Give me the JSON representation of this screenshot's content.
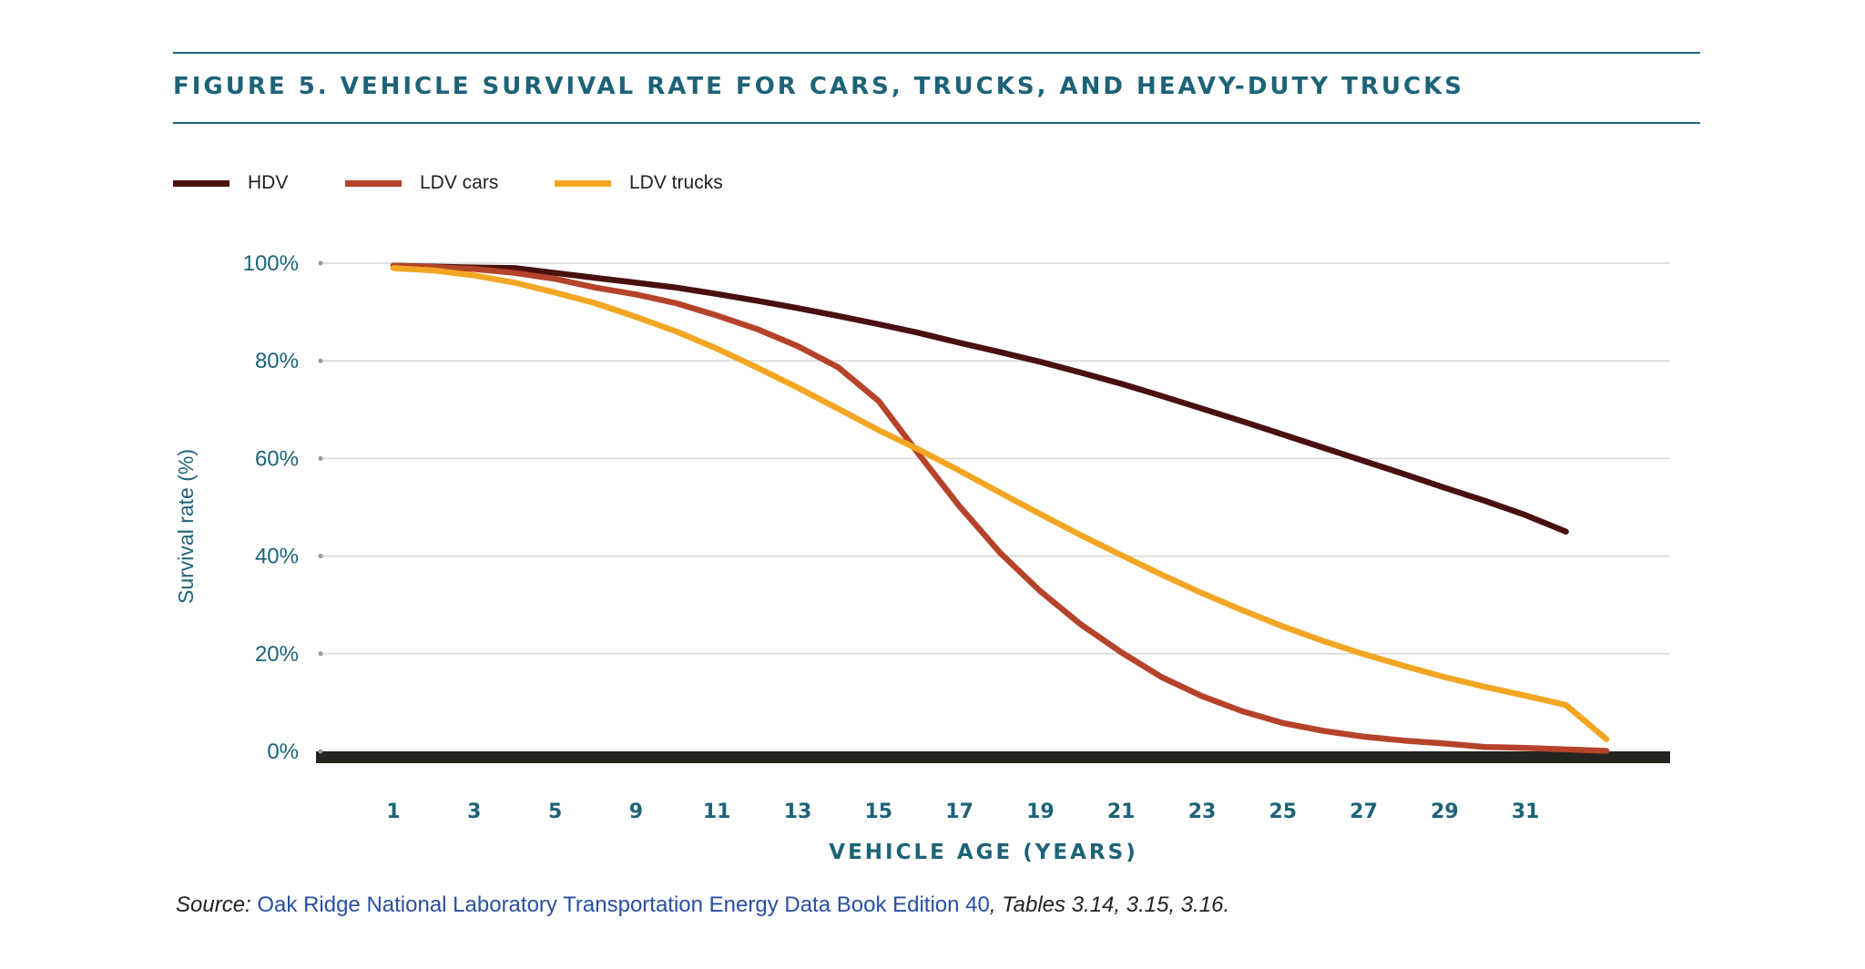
{
  "title": "FIGURE 5. VEHICLE SURVIVAL RATE FOR CARS, TRUCKS, AND HEAVY-DUTY TRUCKS",
  "source": {
    "prefix": "Source:",
    "link_text": "Oak Ridge National Laboratory Transportation Energy Data Book Edition 40",
    "suffix": ", Tables 3.14, 3.15, 3.16."
  },
  "colors": {
    "title": "#1d6378",
    "axis_text": "#1d6378",
    "baseline": "#22261f",
    "grid": "#d6d6d6",
    "link": "#2a4fa0"
  },
  "chart_data": {
    "type": "line",
    "title": "FIGURE 5. VEHICLE SURVIVAL RATE FOR CARS, TRUCKS, AND HEAVY-DUTY TRUCKS",
    "xlabel": "VEHICLE AGE (YEARS)",
    "ylabel": "Survival rate (%)",
    "x_tick_labels": [
      "1",
      "3",
      "5",
      "9",
      "11",
      "13",
      "15",
      "17",
      "19",
      "21",
      "23",
      "25",
      "27",
      "29",
      "31",
      " "
    ],
    "y_ticks": [
      0,
      20,
      40,
      60,
      80,
      100
    ],
    "y_tick_labels": [
      "0%",
      "20%",
      "40%",
      "60%",
      "80%",
      "100%"
    ],
    "ylim": [
      0,
      100
    ],
    "grid": true,
    "legend": "top-left",
    "series": [
      {
        "name": "HDV",
        "color": "#4a1010",
        "x": [
          1,
          2,
          3,
          4,
          5,
          6,
          7,
          8,
          9,
          10,
          11,
          12,
          13,
          14,
          15,
          16,
          17,
          18,
          19,
          20,
          21,
          22,
          23,
          24,
          25,
          26,
          27,
          28,
          29,
          30
        ],
        "values": [
          99.5,
          99.3,
          99.1,
          99,
          98,
          97,
          96,
          95,
          93.7,
          92.3,
          90.8,
          89.2,
          87.5,
          85.7,
          83.7,
          81.8,
          79.8,
          77.6,
          75.3,
          72.8,
          70.2,
          67.6,
          64.9,
          62.2,
          59.5,
          56.8,
          54,
          51.3,
          48.4,
          45
        ]
      },
      {
        "name": "LDV cars",
        "color": "#b5432a",
        "x": [
          1,
          2,
          3,
          4,
          5,
          6,
          7,
          8,
          9,
          10,
          11,
          12,
          13,
          14,
          15,
          16,
          17,
          18,
          19,
          20,
          21,
          22,
          23,
          24,
          25,
          26,
          27,
          28,
          29,
          30,
          31
        ],
        "values": [
          99.5,
          99.2,
          98.8,
          98,
          96.8,
          95,
          93.6,
          91.8,
          89.3,
          86.5,
          83,
          78.7,
          71.8,
          60.8,
          50.2,
          40.7,
          32.8,
          26,
          20.3,
          15.2,
          11.3,
          8.2,
          5.8,
          4.2,
          3,
          2.2,
          1.6,
          0.9,
          0.7,
          0.4,
          0.1
        ]
      },
      {
        "name": "LDV trucks",
        "color": "#f2a623",
        "x": [
          1,
          2,
          3,
          4,
          5,
          6,
          7,
          8,
          9,
          10,
          11,
          12,
          13,
          14,
          15,
          16,
          17,
          18,
          19,
          20,
          21,
          22,
          23,
          24,
          25,
          26,
          27,
          28,
          29,
          30,
          31
        ],
        "values": [
          99,
          98.5,
          97.5,
          96,
          94,
          91.8,
          89,
          86,
          82.5,
          78.6,
          74.5,
          70.2,
          65.8,
          61.8,
          57.5,
          53,
          48.6,
          44.3,
          40.2,
          36.2,
          32.4,
          28.9,
          25.6,
          22.6,
          19.9,
          17.5,
          15.2,
          13.2,
          11.4,
          9.5,
          2.5
        ]
      }
    ]
  }
}
